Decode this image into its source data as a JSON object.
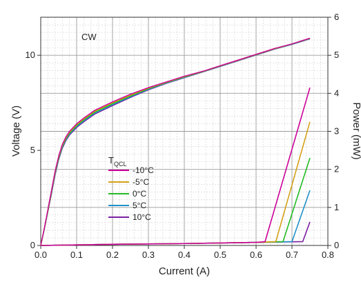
{
  "chart_data": {
    "type": "line",
    "annotation": "CW",
    "xlabel": "Current (A)",
    "ylabel_left": "Voltage (V)",
    "ylabel_right": "Power (mW)",
    "xlim": [
      0,
      0.8
    ],
    "ylim_left": [
      0,
      12
    ],
    "ylim_right": [
      0,
      6
    ],
    "x_ticks": [
      "0.0",
      "0.1",
      "0.2",
      "0.3",
      "0.4",
      "0.5",
      "0.6",
      "0.7",
      "0.8"
    ],
    "y_left_ticks": [
      "0",
      "5",
      "10"
    ],
    "y_right_ticks": [
      "0",
      "1",
      "2",
      "3",
      "4",
      "5",
      "6"
    ],
    "grid": true,
    "legend": {
      "title_main": "T",
      "title_sub": "QCL",
      "placement": "bottom-left",
      "entries": [
        "-10°C",
        "-5°C",
        "0°C",
        "5°C",
        "10°C"
      ]
    },
    "voltage_curve_x": [
      0,
      0.01,
      0.02,
      0.03,
      0.04,
      0.05,
      0.06,
      0.07,
      0.08,
      0.1,
      0.12,
      0.15,
      0.2,
      0.25,
      0.3,
      0.35,
      0.4,
      0.45,
      0.5,
      0.55,
      0.6,
      0.65,
      0.7,
      0.75
    ],
    "series": [
      {
        "name": "-10°C",
        "color": "#cc0099",
        "voltage": [
          0,
          0.9,
          1.9,
          2.9,
          3.9,
          4.7,
          5.3,
          5.7,
          6.0,
          6.4,
          6.7,
          7.1,
          7.55,
          7.95,
          8.3,
          8.6,
          8.9,
          9.15,
          9.45,
          9.75,
          10.05,
          10.35,
          10.6,
          10.9
        ],
        "power_current": [
          0.0,
          0.2,
          0.4,
          0.6,
          0.625,
          0.75
        ],
        "power": [
          0.0,
          0.03,
          0.05,
          0.08,
          0.1,
          4.15
        ]
      },
      {
        "name": "-5°C",
        "color": "#d4a017",
        "voltage": [
          0,
          0.9,
          1.85,
          2.85,
          3.85,
          4.65,
          5.25,
          5.65,
          5.95,
          6.35,
          6.65,
          7.05,
          7.5,
          7.9,
          8.27,
          8.58,
          8.88,
          9.14,
          9.44,
          9.74,
          10.04,
          10.34,
          10.6,
          10.89
        ],
        "power_current": [
          0.0,
          0.2,
          0.4,
          0.6,
          0.655,
          0.75
        ],
        "power": [
          0.0,
          0.03,
          0.05,
          0.08,
          0.1,
          3.25
        ]
      },
      {
        "name": "0°C",
        "color": "#22bb22",
        "voltage": [
          0,
          0.88,
          1.82,
          2.8,
          3.8,
          4.6,
          5.2,
          5.6,
          5.9,
          6.3,
          6.6,
          7.0,
          7.45,
          7.86,
          8.24,
          8.56,
          8.86,
          9.13,
          9.43,
          9.73,
          10.03,
          10.33,
          10.59,
          10.88
        ],
        "power_current": [
          0.0,
          0.2,
          0.4,
          0.6,
          0.675,
          0.75
        ],
        "power": [
          0.0,
          0.03,
          0.05,
          0.08,
          0.1,
          2.3
        ]
      },
      {
        "name": "5°C",
        "color": "#1e90c8",
        "voltage": [
          0,
          0.86,
          1.8,
          2.75,
          3.75,
          4.55,
          5.15,
          5.55,
          5.85,
          6.25,
          6.55,
          6.95,
          7.4,
          7.82,
          8.21,
          8.54,
          8.84,
          9.12,
          9.42,
          9.72,
          10.02,
          10.32,
          10.58,
          10.87
        ],
        "power_current": [
          0.0,
          0.2,
          0.4,
          0.6,
          0.7,
          0.75
        ],
        "power": [
          0.0,
          0.03,
          0.05,
          0.08,
          0.1,
          1.45
        ]
      },
      {
        "name": "10°C",
        "color": "#7a1fa2",
        "voltage": [
          0,
          0.85,
          1.78,
          2.7,
          3.7,
          4.5,
          5.1,
          5.5,
          5.8,
          6.2,
          6.5,
          6.9,
          7.35,
          7.78,
          8.18,
          8.52,
          8.82,
          9.11,
          9.41,
          9.71,
          10.01,
          10.31,
          10.57,
          10.86
        ],
        "power_current": [
          0.0,
          0.2,
          0.4,
          0.6,
          0.73,
          0.75
        ],
        "power": [
          0.0,
          0.03,
          0.05,
          0.08,
          0.1,
          0.62
        ]
      }
    ]
  }
}
